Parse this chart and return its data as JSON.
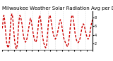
{
  "title": "Milwaukee Weather Solar Radiation Avg per Day W/m²/minute",
  "line_color": "#cc0000",
  "grid_color": "#bbbbbb",
  "bg_color": "#ffffff",
  "y_values": [
    5.5,
    6.5,
    7.8,
    8.5,
    8.2,
    7.0,
    5.5,
    4.2,
    3.0,
    2.0,
    1.5,
    1.2,
    1.0,
    1.5,
    2.5,
    4.0,
    5.8,
    7.2,
    8.3,
    8.8,
    8.5,
    7.5,
    6.0,
    4.5,
    3.2,
    2.2,
    1.4,
    1.0,
    0.8,
    1.2,
    2.2,
    3.8,
    5.5,
    7.0,
    8.0,
    8.5,
    8.2,
    7.8,
    7.2,
    6.5,
    5.5,
    4.5,
    3.8,
    3.2,
    2.8,
    2.5,
    2.3,
    2.5,
    2.8,
    3.2,
    3.8,
    4.5,
    5.2,
    6.0,
    6.8,
    7.5,
    7.8,
    7.5,
    6.8,
    6.0,
    5.2,
    4.5,
    3.8,
    3.2,
    2.8,
    2.5,
    2.3,
    2.5,
    2.8,
    3.5,
    4.5,
    5.8,
    7.0,
    8.0,
    8.5,
    8.2,
    7.5,
    6.5,
    5.5,
    4.5,
    3.5,
    2.8,
    2.2,
    1.8,
    1.5,
    1.2,
    1.0,
    1.3,
    2.0,
    3.2,
    4.8,
    6.2,
    7.5,
    8.2,
    8.5,
    8.3,
    7.8,
    7.0,
    6.2,
    5.5,
    4.8,
    4.2,
    3.8,
    3.5,
    3.2,
    3.0,
    3.2,
    3.5,
    3.8,
    4.2,
    4.8,
    5.5,
    6.2,
    6.8,
    7.2,
    7.5,
    7.2,
    6.8,
    6.0,
    5.2,
    4.5,
    3.8,
    3.2,
    2.8,
    2.5,
    2.2,
    2.0,
    1.8,
    1.5,
    1.3,
    1.5,
    2.0,
    2.8,
    3.8,
    5.0,
    6.2,
    7.2,
    8.0,
    8.5,
    8.5,
    8.2,
    7.5,
    6.5,
    5.5,
    4.5,
    3.8,
    3.2,
    2.8,
    2.5,
    2.3,
    2.2,
    2.3,
    2.5,
    2.8,
    3.2,
    3.8,
    4.5,
    5.2,
    5.8,
    6.2,
    6.5,
    6.5,
    6.2,
    5.8,
    5.2,
    4.8,
    4.2,
    3.8,
    3.5,
    3.2,
    3.0,
    3.2,
    3.5,
    4.0,
    4.8,
    5.5,
    6.2,
    6.8,
    7.2,
    7.5
  ],
  "ylim": [
    0.5,
    9.5
  ],
  "ytick_positions": [
    2,
    4,
    6,
    8
  ],
  "ytick_labels": [
    "2",
    "4",
    "6",
    "8"
  ],
  "n_gridlines": 12,
  "title_fontsize": 5.0,
  "tick_fontsize": 3.5,
  "linewidth": 1.0
}
